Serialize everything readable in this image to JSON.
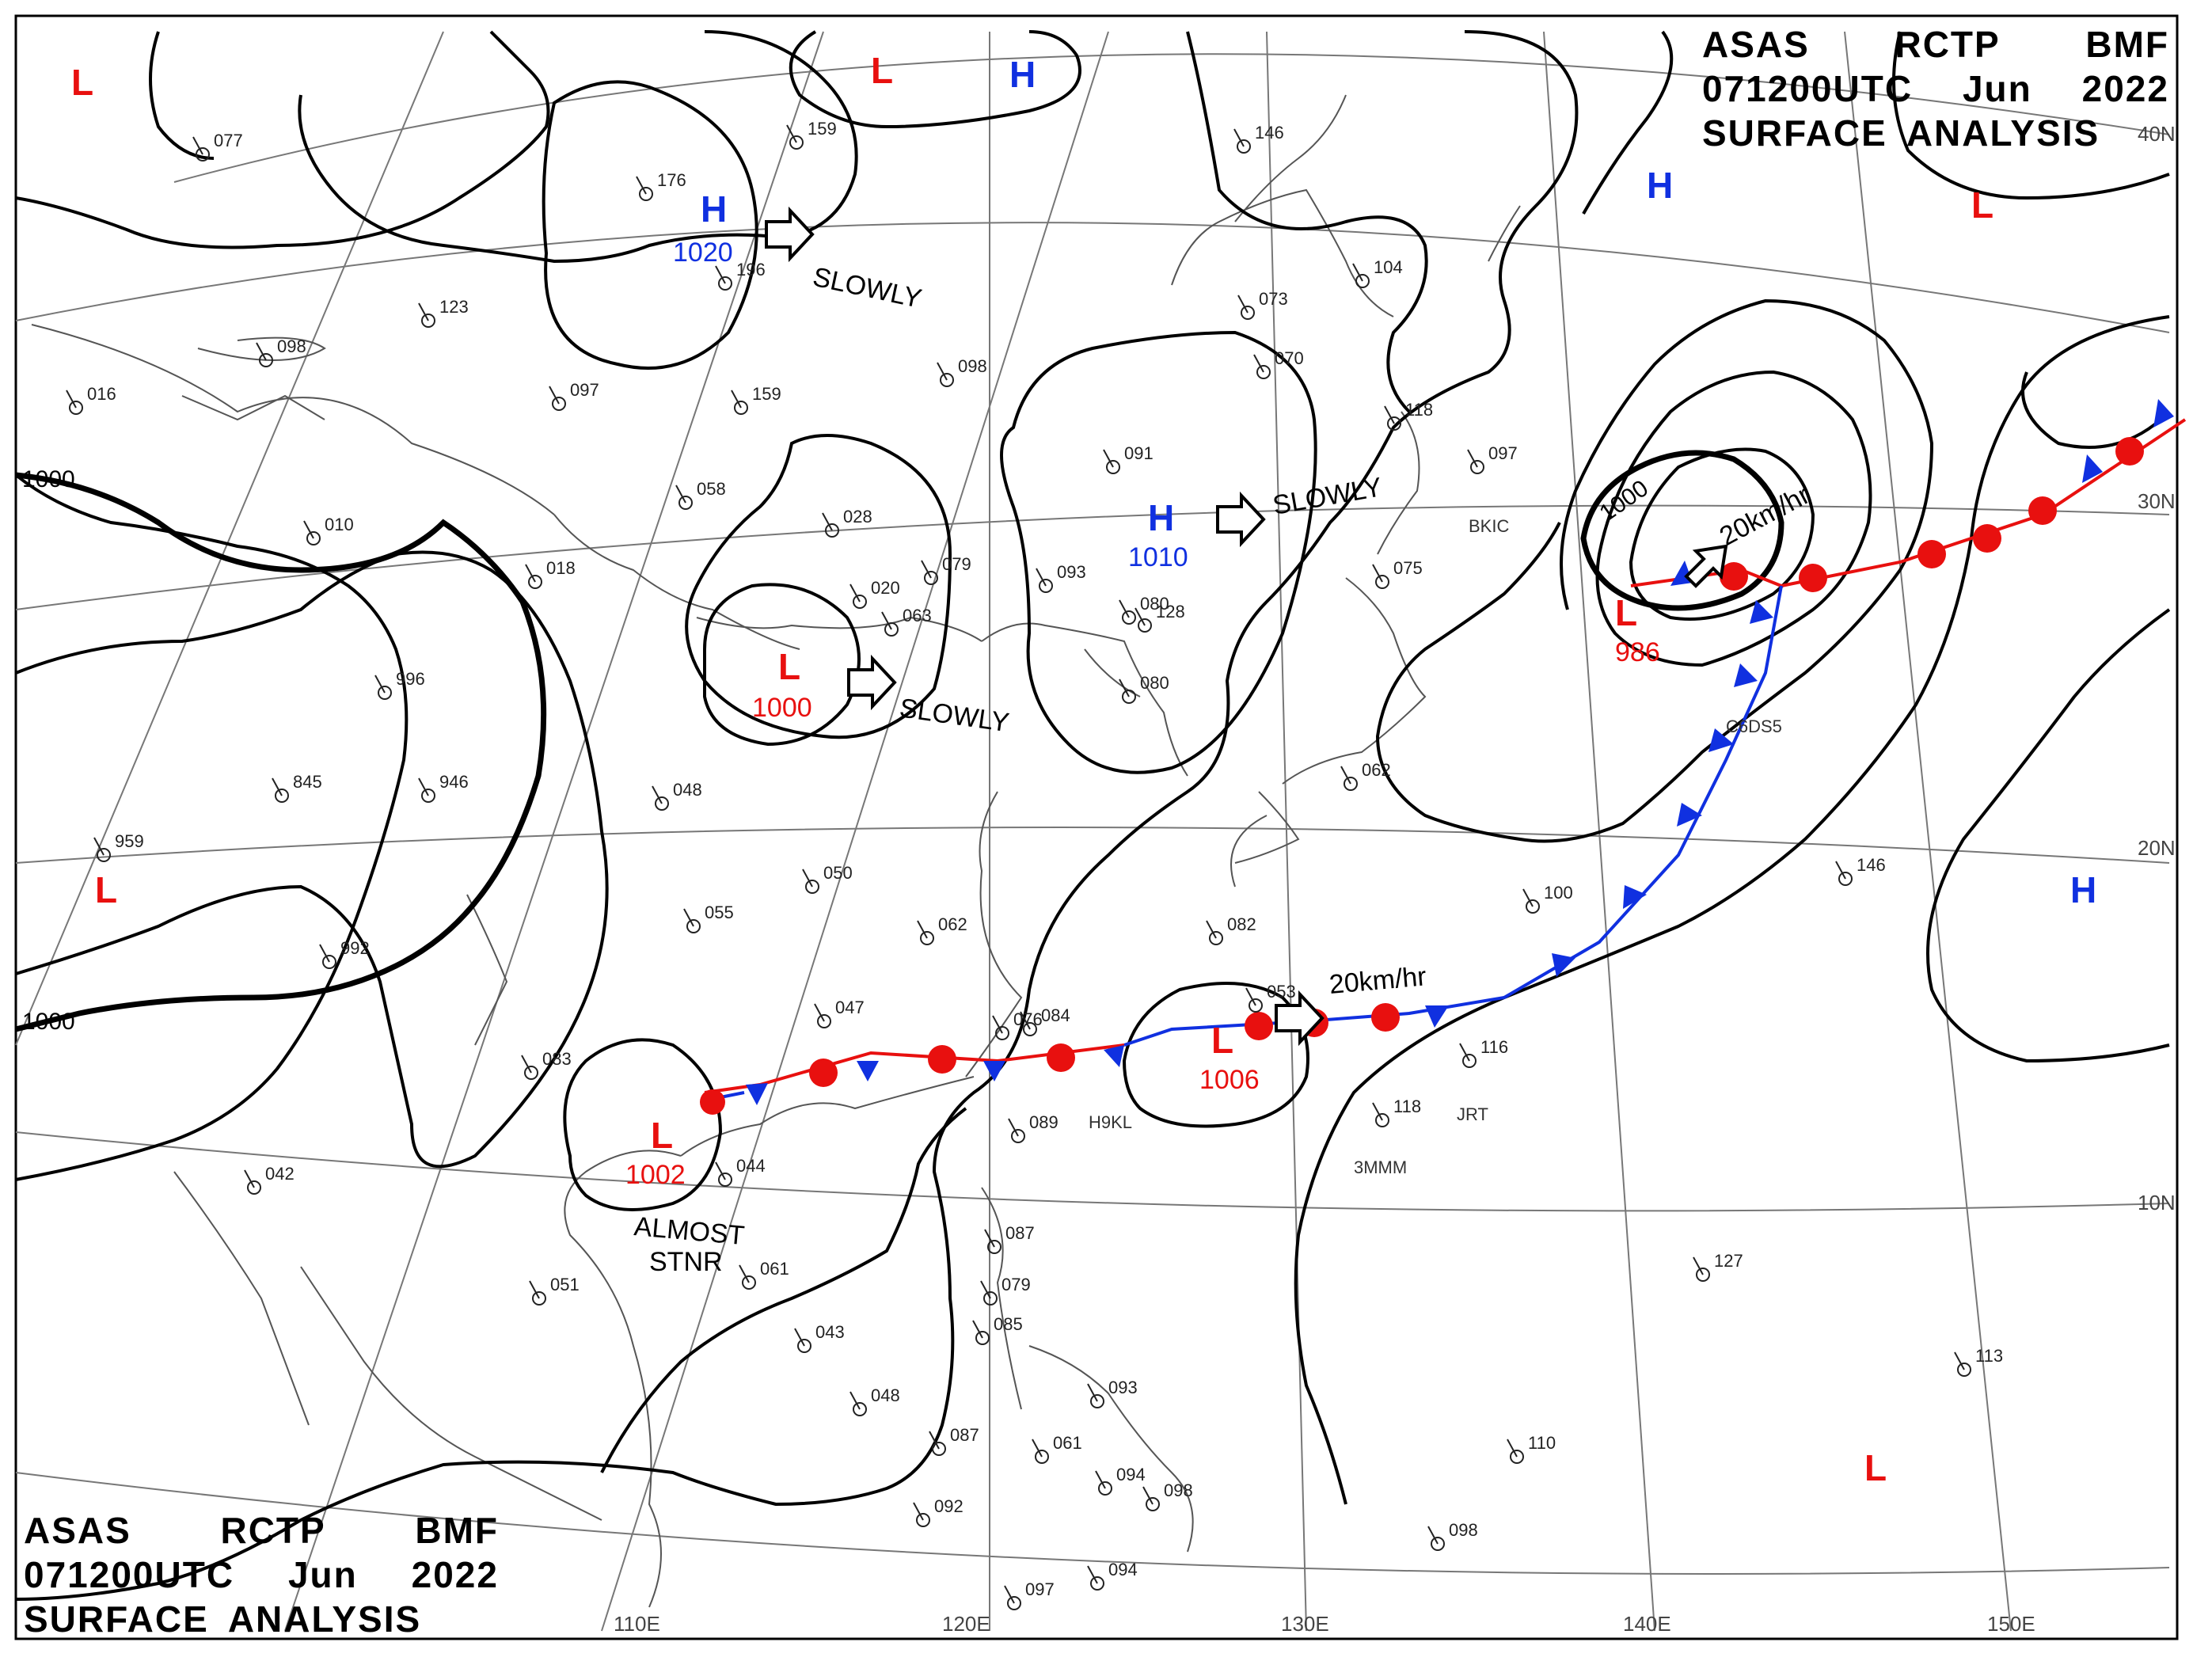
{
  "header": {
    "line1": [
      "ASAS",
      "RCTP",
      "BMF"
    ],
    "line2": [
      "071200UTC",
      "Jun",
      "2022"
    ],
    "line3": [
      "SURFACE",
      "ANALYSIS"
    ]
  },
  "isobar_labels": [
    "1000",
    "1000",
    "1000"
  ],
  "pressure_centers": [
    {
      "type": "H",
      "value": "1020"
    },
    {
      "type": "H",
      "value": "1010"
    },
    {
      "type": "L",
      "value": "1000"
    },
    {
      "type": "L",
      "value": "986"
    },
    {
      "type": "L",
      "value": "1006"
    },
    {
      "type": "L",
      "value": "1002"
    },
    {
      "type": "H",
      "value": ""
    },
    {
      "type": "H",
      "value": ""
    },
    {
      "type": "H",
      "value": ""
    },
    {
      "type": "L",
      "value": ""
    },
    {
      "type": "L",
      "value": ""
    },
    {
      "type": "L",
      "value": ""
    },
    {
      "type": "L",
      "value": ""
    },
    {
      "type": "L",
      "value": ""
    }
  ],
  "movement_labels": [
    "SLOWLY",
    "SLOWLY",
    "SLOWLY",
    "20km/hr",
    "20km/hr",
    "ALMOST",
    "STNR"
  ],
  "grid_labels": {
    "lon": [
      "110E",
      "120E",
      "130E",
      "140E",
      "150E"
    ],
    "lat": [
      "40N",
      "30N",
      "20N",
      "10N"
    ]
  },
  "station_numbers": [
    "077",
    "159",
    "176",
    "196",
    "123",
    "098",
    "016",
    "097",
    "159",
    "058",
    "028",
    "010",
    "018",
    "020",
    "079",
    "093",
    "080",
    "091",
    "070",
    "073",
    "146",
    "104",
    "118",
    "097",
    "075",
    "063",
    "098",
    "128",
    "080",
    "996",
    "845",
    "946",
    "959",
    "992",
    "048",
    "050",
    "055",
    "062",
    "082",
    "076",
    "084",
    "083",
    "047",
    "100",
    "146",
    "118",
    "116",
    "089",
    "044",
    "042",
    "061",
    "051",
    "087",
    "079",
    "085",
    "093",
    "094",
    "098",
    "092",
    "097",
    "094",
    "113",
    "127",
    "110",
    "098",
    "048",
    "043",
    "087",
    "061",
    "053",
    "062"
  ],
  "station_labels": [
    "BKIC",
    "C6DS5",
    "H9KL",
    "JRT",
    "3MMM"
  ],
  "colors": {
    "low": "#e8100f",
    "high": "#1030e0",
    "warm_front": "#e8100f",
    "cold_front": "#1030e0",
    "isobar": "#000000",
    "coast": "#555555",
    "grid": "#666666"
  }
}
